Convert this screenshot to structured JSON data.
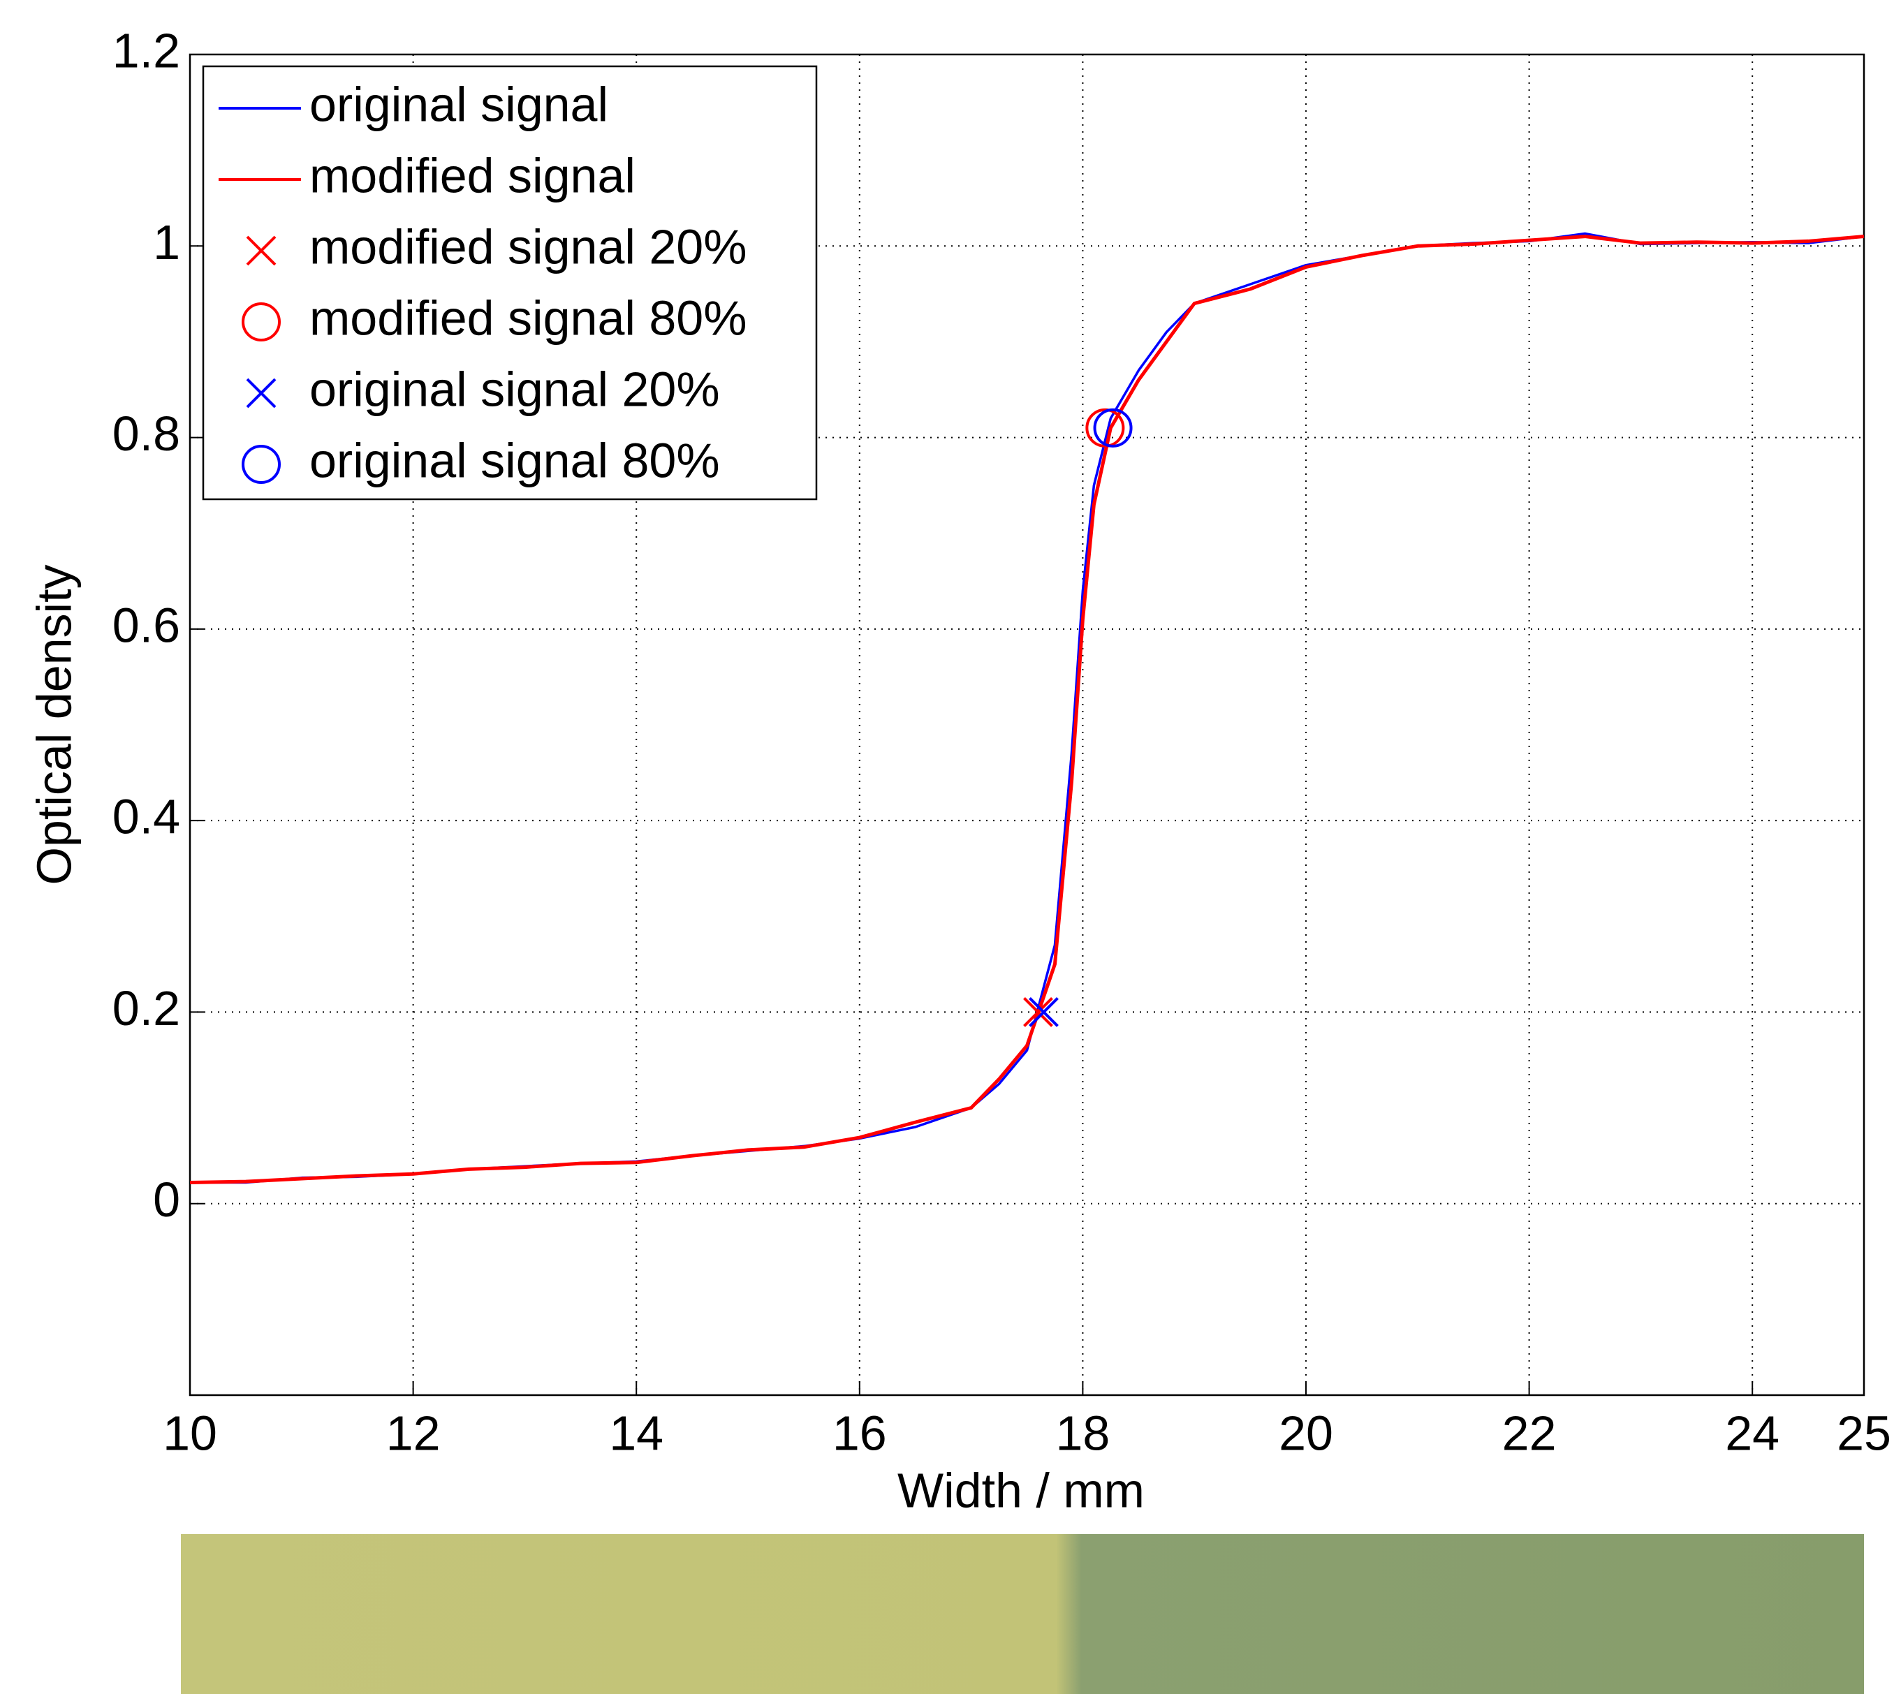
{
  "chart_data": {
    "type": "line",
    "xlabel": "Width / mm",
    "ylabel": "Optical density",
    "x": [
      10,
      10.5,
      11,
      11.5,
      12,
      12.5,
      13,
      13.5,
      14,
      14.5,
      15,
      15.5,
      16,
      16.5,
      17,
      17.25,
      17.5,
      17.75,
      17.9,
      18,
      18.1,
      18.25,
      18.5,
      18.75,
      19,
      19.5,
      20,
      20.5,
      21,
      21.5,
      22,
      22.5,
      23,
      23.5,
      24,
      24.5,
      25
    ],
    "series": [
      {
        "name": "original signal",
        "color": "#0000ff",
        "values": [
          0.022,
          0.022,
          0.027,
          0.028,
          0.031,
          0.036,
          0.039,
          0.042,
          0.044,
          0.05,
          0.055,
          0.06,
          0.068,
          0.08,
          0.1,
          0.125,
          0.16,
          0.27,
          0.47,
          0.64,
          0.75,
          0.82,
          0.87,
          0.91,
          0.94,
          0.96,
          0.98,
          0.99,
          1.0,
          1.003,
          1.005,
          1.013,
          1.002,
          1.003,
          1.004,
          1.003,
          1.01
        ]
      },
      {
        "name": "modified signal",
        "color": "#ff0000",
        "values": [
          0.022,
          0.023,
          0.026,
          0.029,
          0.031,
          0.036,
          0.038,
          0.042,
          0.043,
          0.05,
          0.056,
          0.059,
          0.069,
          0.085,
          0.1,
          0.13,
          0.165,
          0.25,
          0.44,
          0.61,
          0.73,
          0.81,
          0.86,
          0.9,
          0.94,
          0.955,
          0.978,
          0.99,
          1.0,
          1.002,
          1.006,
          1.01,
          1.003,
          1.004,
          1.003,
          1.005,
          1.01
        ]
      }
    ],
    "markers": [
      {
        "name": "modified signal 20%",
        "color": "#ff0000",
        "marker": "x",
        "x": 17.6,
        "y": 0.2
      },
      {
        "name": "modified signal 80%",
        "color": "#ff0000",
        "marker": "o",
        "x": 18.2,
        "y": 0.81
      },
      {
        "name": "original signal 20%",
        "color": "#0000ff",
        "marker": "x",
        "x": 17.65,
        "y": 0.2
      },
      {
        "name": "original signal 80%",
        "color": "#0000ff",
        "marker": "o",
        "x": 18.27,
        "y": 0.81
      }
    ],
    "xlim": [
      10,
      25
    ],
    "xticks": [
      10,
      12,
      14,
      16,
      18,
      20,
      22,
      24,
      25
    ],
    "ylim": [
      -0.2,
      1.2
    ],
    "yticks": [
      0,
      0.2,
      0.4,
      0.6,
      0.8,
      1,
      1.2
    ],
    "grid": true,
    "legend": "upper left"
  }
}
